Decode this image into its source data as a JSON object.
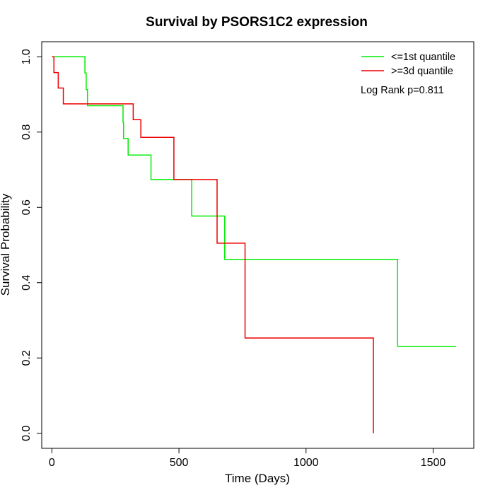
{
  "chart_data": {
    "type": "line",
    "title": "Survival by PSORS1C2 expression",
    "xlabel": "Time (Days)",
    "ylabel": "Survival Probability",
    "xlim": [
      -40,
      1660
    ],
    "ylim": [
      -0.04,
      1.04
    ],
    "xticks": [
      0,
      500,
      1000,
      1500
    ],
    "yticks": [
      0.0,
      0.2,
      0.4,
      0.6,
      0.8,
      1.0
    ],
    "xtick_labels": [
      "0",
      "500",
      "1000",
      "1500"
    ],
    "ytick_labels": [
      "0.0",
      "0.2",
      "0.4",
      "0.6",
      "0.8",
      "1.0"
    ],
    "legend_position": "top-right",
    "annotation": "Log Rank p=0.811",
    "series": [
      {
        "name": "<=1st quantile",
        "color": "#00ee00",
        "steps": [
          [
            0,
            1.0
          ],
          [
            130,
            0.957
          ],
          [
            135,
            0.913
          ],
          [
            140,
            0.87
          ],
          [
            280,
            0.826
          ],
          [
            282,
            0.783
          ],
          [
            300,
            0.739
          ],
          [
            390,
            0.674
          ],
          [
            550,
            0.577
          ],
          [
            680,
            0.462
          ],
          [
            1360,
            0.231
          ],
          [
            1590,
            0.231
          ]
        ]
      },
      {
        "name": ">=3d quantile",
        "color": "#ee0000",
        "steps": [
          [
            0,
            1.0
          ],
          [
            8,
            0.958
          ],
          [
            25,
            0.917
          ],
          [
            45,
            0.875
          ],
          [
            320,
            0.833
          ],
          [
            350,
            0.786
          ],
          [
            480,
            0.674
          ],
          [
            650,
            0.505
          ],
          [
            760,
            0.253
          ],
          [
            1265,
            0.0
          ]
        ]
      }
    ]
  }
}
